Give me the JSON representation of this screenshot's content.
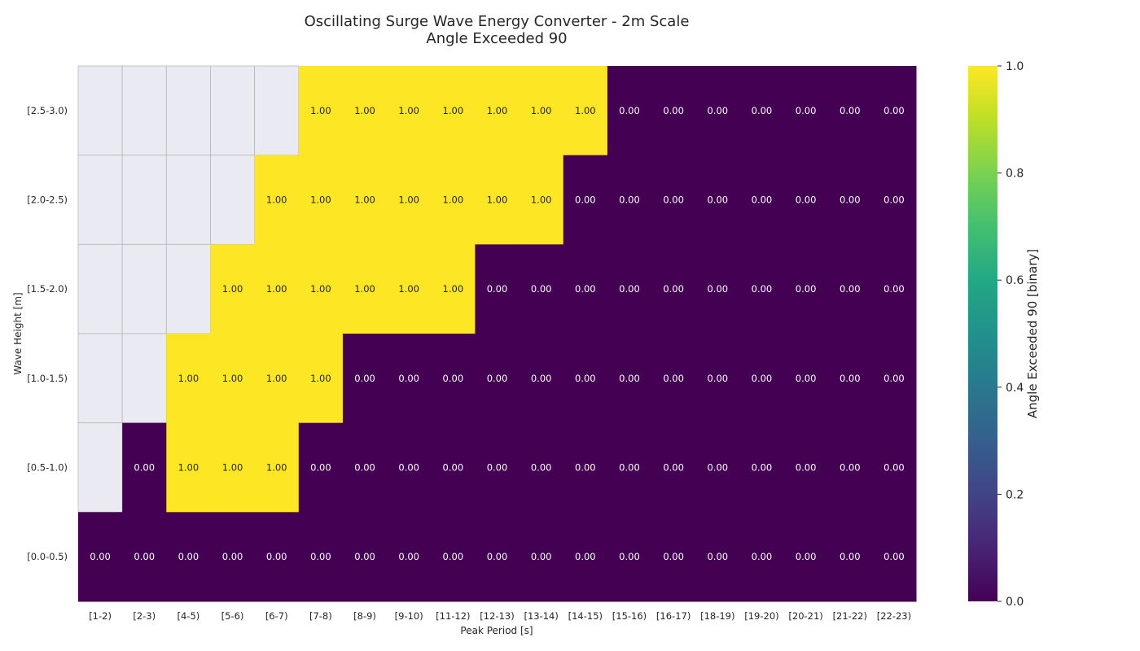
{
  "chart_data": {
    "type": "heatmap",
    "title_line1": "Oscillating Surge Wave Energy Converter - 2m Scale",
    "title_line2": "Angle Exceeded 90",
    "xlabel": "Peak Period [s]",
    "ylabel": "Wave Height [m]",
    "x_categories": [
      "[1-2)",
      "[2-3)",
      "[4-5)",
      "[5-6)",
      "[6-7)",
      "[7-8)",
      "[8-9)",
      "[9-10)",
      "[11-12)",
      "[12-13)",
      "[13-14)",
      "[14-15)",
      "[15-16)",
      "[16-17)",
      "[18-19)",
      "[19-20)",
      "[20-21)",
      "[21-22)",
      "[22-23)"
    ],
    "y_categories": [
      "[2.5-3.0)",
      "[2.0-2.5)",
      "[1.5-2.0)",
      "[1.0-1.5)",
      "[0.5-1.0)",
      "[0.0-0.5)"
    ],
    "values": [
      [
        null,
        null,
        null,
        null,
        null,
        1,
        1,
        1,
        1,
        1,
        1,
        1,
        0,
        0,
        0,
        0,
        0,
        0,
        0
      ],
      [
        null,
        null,
        null,
        null,
        1,
        1,
        1,
        1,
        1,
        1,
        1,
        0,
        0,
        0,
        0,
        0,
        0,
        0,
        0
      ],
      [
        null,
        null,
        null,
        1,
        1,
        1,
        1,
        1,
        1,
        0,
        0,
        0,
        0,
        0,
        0,
        0,
        0,
        0,
        0
      ],
      [
        null,
        null,
        1,
        1,
        1,
        1,
        0,
        0,
        0,
        0,
        0,
        0,
        0,
        0,
        0,
        0,
        0,
        0,
        0
      ],
      [
        null,
        0,
        1,
        1,
        1,
        0,
        0,
        0,
        0,
        0,
        0,
        0,
        0,
        0,
        0,
        0,
        0,
        0,
        0
      ],
      [
        0,
        0,
        0,
        0,
        0,
        0,
        0,
        0,
        0,
        0,
        0,
        0,
        0,
        0,
        0,
        0,
        0,
        0,
        0
      ]
    ],
    "value_format": "0.00",
    "colormap": "viridis",
    "vmin": 0,
    "vmax": 1,
    "missing_color": "#eaeaf2",
    "colorbar": {
      "label": "Angle Exceeded 90 [binary]",
      "ticks": [
        "0.0",
        "0.2",
        "0.4",
        "0.6",
        "0.8",
        "1.0"
      ]
    }
  }
}
